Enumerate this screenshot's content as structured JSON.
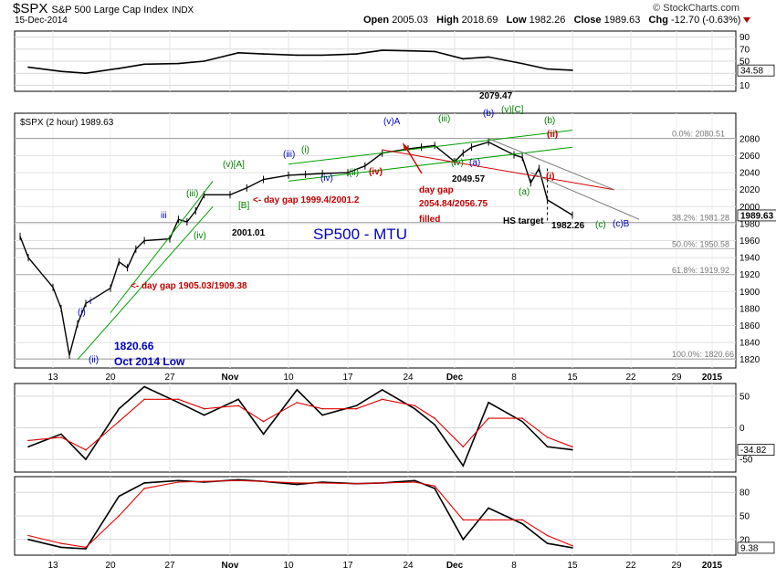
{
  "header": {
    "ticker": "$SPX",
    "name": "S&P 500 Large Cap Index",
    "exchange": "INDX",
    "date": "15-Dec-2014",
    "open_label": "Open",
    "open": "2005.03",
    "high_label": "High",
    "high": "2018.69",
    "low_label": "Low",
    "low": "1982.26",
    "close_label": "Close",
    "close": "1989.63",
    "chg_label": "Chg",
    "chg": "-12.70 (-0.63%)",
    "copyright": "© StockCharts.com",
    "main_legend": "$SPX (2 hour) 1989.63"
  },
  "colors": {
    "price": "#000000",
    "channel": "#00a000",
    "resistance": "#d00000",
    "trendline": "#808080",
    "blue_label": "#0000c0",
    "green_label": "#008000",
    "red_label": "#c00000",
    "signal_line": "#e00000"
  },
  "chart_data": [
    {
      "type": "line",
      "panel": "top-indicator",
      "ylim": [
        0,
        100
      ],
      "yticks": [
        10,
        30,
        50,
        70,
        90
      ],
      "last_value_label": "34.58",
      "x": [
        "2014-10-10",
        "2014-10-14",
        "2014-10-17",
        "2014-10-21",
        "2014-10-24",
        "2014-10-28",
        "2014-10-31",
        "2014-11-04",
        "2014-11-07",
        "2014-11-11",
        "2014-11-14",
        "2014-11-18",
        "2014-11-21",
        "2014-11-25",
        "2014-11-28",
        "2014-12-02",
        "2014-12-05",
        "2014-12-09",
        "2014-12-12",
        "2014-12-15"
      ],
      "series": [
        {
          "values": [
            40,
            33,
            30,
            38,
            45,
            46,
            50,
            64,
            62,
            60,
            60,
            62,
            68,
            67,
            66,
            54,
            57,
            46,
            37,
            35
          ]
        }
      ],
      "grid": true
    },
    {
      "type": "line",
      "panel": "price",
      "title": "SP500 - MTU",
      "ylim": [
        1810,
        2110
      ],
      "yticks": [
        1820,
        1840,
        1860,
        1880,
        1900,
        1920,
        1940,
        1960,
        1980,
        2000,
        2020,
        2040,
        2060,
        2080
      ],
      "xticks": [
        "13",
        "20",
        "27",
        "Nov",
        "10",
        "17",
        "24",
        "Dec",
        "8",
        "15",
        "22",
        "29",
        "2015"
      ],
      "x": [
        "2014-10-09",
        "2014-10-10",
        "2014-10-13",
        "2014-10-14",
        "2014-10-15",
        "2014-10-16",
        "2014-10-17",
        "2014-10-20",
        "2014-10-21",
        "2014-10-22",
        "2014-10-23",
        "2014-10-24",
        "2014-10-27",
        "2014-10-28",
        "2014-10-29",
        "2014-10-30",
        "2014-10-31",
        "2014-11-03",
        "2014-11-05",
        "2014-11-07",
        "2014-11-10",
        "2014-11-12",
        "2014-11-14",
        "2014-11-17",
        "2014-11-19",
        "2014-11-21",
        "2014-11-24",
        "2014-11-26",
        "2014-11-28",
        "2014-12-01",
        "2014-12-02",
        "2014-12-03",
        "2014-12-05",
        "2014-12-08",
        "2014-12-09",
        "2014-12-10",
        "2014-12-11",
        "2014-12-12",
        "2014-12-15"
      ],
      "series": [
        {
          "name": "$SPX (2 hour)",
          "values": [
            1965,
            1940,
            1905,
            1880,
            1825,
            1862,
            1886,
            1904,
            1935,
            1928,
            1950,
            1960,
            1962,
            1985,
            1982,
            1995,
            2014,
            2014,
            2022,
            2032,
            2037,
            2038,
            2039,
            2040,
            2048,
            2063,
            2068,
            2070,
            2072,
            2053,
            2063,
            2070,
            2076,
            2061,
            2058,
            2028,
            2045,
            2008,
            1990
          ]
        }
      ],
      "fib_levels": [
        {
          "label": "0.0%: 2080.51",
          "value": 2080.51
        },
        {
          "label": "38.2%: 1981.28",
          "value": 1981.28
        },
        {
          "label": "50.0%: 1950.58",
          "value": 1950.58
        },
        {
          "label": "61.8%: 1919.92",
          "value": 1919.92
        },
        {
          "label": "100.0%: 1820.66",
          "value": 1820.66
        }
      ],
      "last_value_label": "1989.63",
      "annotations": [
        {
          "text": "(i)",
          "color": "blue"
        },
        {
          "text": "i",
          "color": "blue"
        },
        {
          "text": "(ii)",
          "color": "blue"
        },
        {
          "text": "iii",
          "color": "blue"
        },
        {
          "text": "(iii)",
          "color": "green"
        },
        {
          "text": "(iv)",
          "color": "green"
        },
        {
          "text": "(v)[A]",
          "color": "green"
        },
        {
          "text": "[B]",
          "color": "green"
        },
        {
          "text": "<- day gap 1999.4/2001.2",
          "color": "red"
        },
        {
          "text": "2001.01",
          "color": "black"
        },
        {
          "text": "<- day gap 1905.03/1909.38",
          "color": "red"
        },
        {
          "text": "1820.66",
          "color": "blue"
        },
        {
          "text": "Oct 2014 Low",
          "color": "blue"
        },
        {
          "text": "(iii)",
          "color": "blue"
        },
        {
          "text": "(i)",
          "color": "green"
        },
        {
          "text": "(iv)",
          "color": "blue"
        },
        {
          "text": "(ii)",
          "color": "green"
        },
        {
          "text": "(iv)",
          "color": "red"
        },
        {
          "text": "(v)A",
          "color": "blue"
        },
        {
          "text": "(iii)",
          "color": "green"
        },
        {
          "text": "(iv)",
          "color": "green"
        },
        {
          "text": "(a)",
          "color": "blue"
        },
        {
          "text": "(b)",
          "color": "blue"
        },
        {
          "text": "(v)[C]",
          "color": "green"
        },
        {
          "text": "2079.47",
          "color": "black"
        },
        {
          "text": "2049.57",
          "color": "black"
        },
        {
          "text": "day gap",
          "color": "red"
        },
        {
          "text": "2054.84/2056.75",
          "color": "red"
        },
        {
          "text": "filled",
          "color": "red"
        },
        {
          "text": "(b)",
          "color": "green"
        },
        {
          "text": "(ii)",
          "color": "red"
        },
        {
          "text": "(i)",
          "color": "red"
        },
        {
          "text": "(a)",
          "color": "green"
        },
        {
          "text": "HS target",
          "color": "black"
        },
        {
          "text": "1982.26",
          "color": "black"
        },
        {
          "text": "(c)",
          "color": "green"
        },
        {
          "text": "(c)B",
          "color": "blue"
        }
      ],
      "grid": true
    },
    {
      "type": "line",
      "panel": "middle-indicator",
      "ylim": [
        -70,
        70
      ],
      "yticks": [
        -50,
        0,
        50
      ],
      "last_value_label": "-34.82",
      "x": [
        "2014-10-10",
        "2014-10-14",
        "2014-10-17",
        "2014-10-21",
        "2014-10-24",
        "2014-10-28",
        "2014-10-31",
        "2014-11-04",
        "2014-11-07",
        "2014-11-11",
        "2014-11-14",
        "2014-11-18",
        "2014-11-21",
        "2014-11-25",
        "2014-11-28",
        "2014-12-02",
        "2014-12-05",
        "2014-12-09",
        "2014-12-12",
        "2014-12-15"
      ],
      "series": [
        {
          "values": [
            -30,
            -10,
            -50,
            30,
            65,
            40,
            20,
            45,
            -10,
            60,
            20,
            35,
            60,
            30,
            5,
            -60,
            40,
            10,
            -30,
            -34.82
          ]
        },
        {
          "values": [
            -20,
            -15,
            -35,
            10,
            45,
            45,
            30,
            35,
            10,
            40,
            30,
            30,
            45,
            35,
            15,
            -30,
            15,
            15,
            -15,
            -30
          ]
        }
      ],
      "grid": true
    },
    {
      "type": "line",
      "panel": "bottom-indicator",
      "ylim": [
        0,
        100
      ],
      "yticks": [
        20,
        50,
        80
      ],
      "last_value_label": "9.38",
      "x": [
        "2014-10-10",
        "2014-10-14",
        "2014-10-17",
        "2014-10-21",
        "2014-10-24",
        "2014-10-28",
        "2014-10-31",
        "2014-11-04",
        "2014-11-07",
        "2014-11-11",
        "2014-11-14",
        "2014-11-18",
        "2014-11-21",
        "2014-11-25",
        "2014-11-28",
        "2014-12-02",
        "2014-12-05",
        "2014-12-09",
        "2014-12-12",
        "2014-12-15"
      ],
      "series": [
        {
          "values": [
            20,
            10,
            8,
            75,
            92,
            95,
            93,
            96,
            94,
            90,
            93,
            91,
            92,
            95,
            85,
            20,
            60,
            40,
            15,
            9.38
          ]
        },
        {
          "values": [
            25,
            15,
            10,
            50,
            85,
            93,
            94,
            95,
            94,
            92,
            92,
            91,
            92,
            93,
            88,
            45,
            45,
            45,
            25,
            12
          ]
        }
      ],
      "grid": true
    }
  ]
}
